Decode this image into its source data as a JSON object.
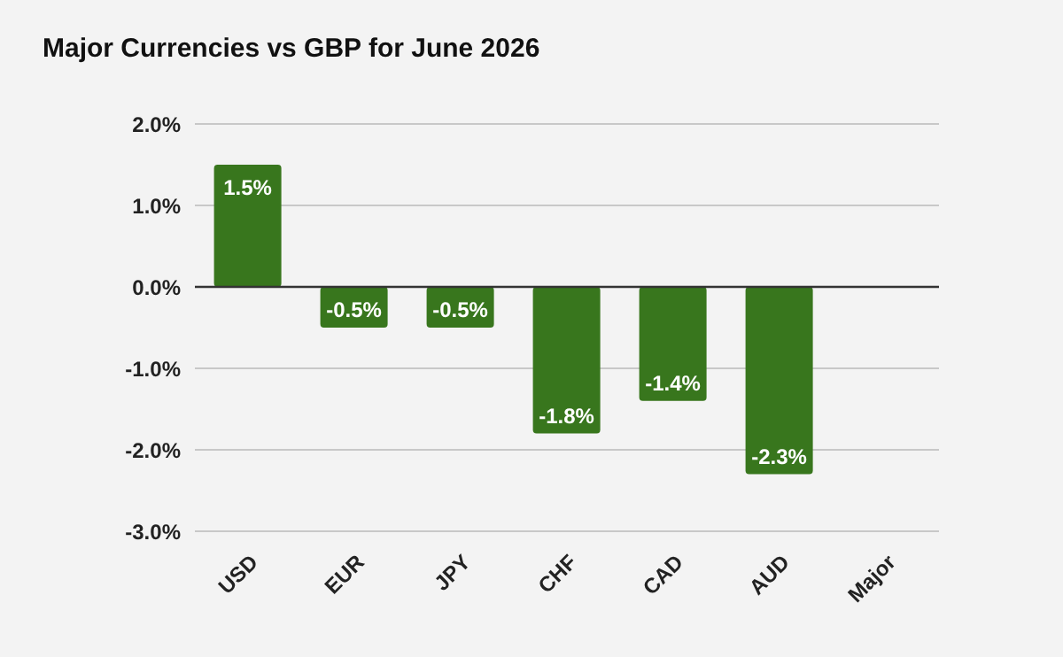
{
  "chart_data": {
    "type": "bar",
    "title": "Major Currencies vs GBP for June 2026",
    "categories": [
      "USD",
      "EUR",
      "JPY",
      "CHF",
      "CAD",
      "AUD",
      "Major"
    ],
    "values": [
      1.5,
      -0.5,
      -0.5,
      -1.8,
      -1.4,
      -2.3,
      null
    ],
    "value_labels": [
      "1.5%",
      "-0.5%",
      "-0.5%",
      "-1.8%",
      "-1.4%",
      "-2.3%",
      null
    ],
    "color": "#38761d",
    "ylim": [
      -3,
      2
    ],
    "yticks": [
      {
        "value": -3,
        "label": "-3.0%"
      },
      {
        "value": -2,
        "label": "-2.0%"
      },
      {
        "value": -1,
        "label": "-1.0%"
      },
      {
        "value": 0,
        "label": "0.0%"
      },
      {
        "value": 1,
        "label": "1.0%"
      },
      {
        "value": 2,
        "label": "2.0%"
      }
    ],
    "ref_lines": [
      {
        "axis": "y",
        "value": 0,
        "color": "#333333"
      }
    ],
    "grid": "y"
  }
}
